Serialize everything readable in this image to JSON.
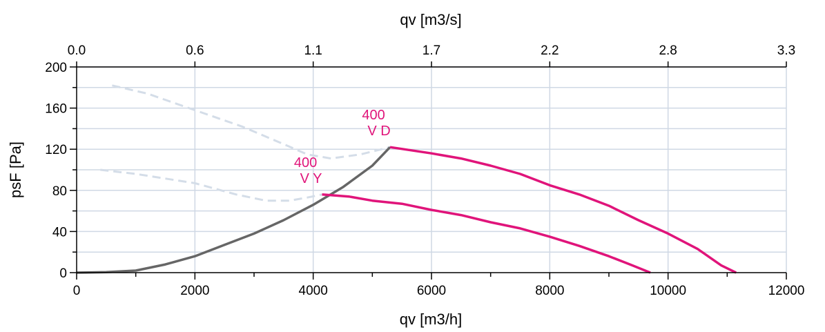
{
  "chart_data": {
    "type": "line",
    "xlabel": "qv [m3/h]",
    "x2label": "qv [m3/s]",
    "ylabel": "psF [Pa]",
    "xlim": [
      0,
      12000
    ],
    "ylim": [
      0,
      200
    ],
    "x_ticks": [
      0,
      2000,
      4000,
      6000,
      8000,
      10000,
      12000
    ],
    "x2_tick_labels": [
      "0.0",
      "0.6",
      "1.1",
      "1.7",
      "2.2",
      "2.8",
      "3.3"
    ],
    "y_ticks": [
      0,
      40,
      80,
      120,
      160,
      200
    ],
    "grid": true,
    "colors": {
      "curve": "#e0147a",
      "system": "#666666",
      "extension": "#d4dde8",
      "grid": "#cfd8e4"
    },
    "series": [
      {
        "id": "vd",
        "style": "curve",
        "points": [
          [
            5300,
            122
          ],
          [
            6000,
            116
          ],
          [
            6500,
            111
          ],
          [
            7000,
            104
          ],
          [
            7500,
            96
          ],
          [
            8000,
            85
          ],
          [
            8500,
            76
          ],
          [
            9000,
            65
          ],
          [
            9500,
            51
          ],
          [
            10000,
            38
          ],
          [
            10500,
            23
          ],
          [
            10900,
            7
          ],
          [
            11150,
            0
          ]
        ]
      },
      {
        "id": "vy",
        "style": "curve",
        "points": [
          [
            4150,
            76
          ],
          [
            4600,
            74
          ],
          [
            5000,
            70
          ],
          [
            5500,
            67
          ],
          [
            6000,
            61
          ],
          [
            6500,
            56
          ],
          [
            7000,
            49
          ],
          [
            7500,
            43
          ],
          [
            8000,
            35
          ],
          [
            8500,
            26
          ],
          [
            9000,
            16
          ],
          [
            9400,
            7
          ],
          [
            9700,
            0
          ]
        ]
      },
      {
        "id": "system",
        "style": "system",
        "points": [
          [
            0,
            0
          ],
          [
            500,
            0.5
          ],
          [
            1000,
            2
          ],
          [
            1500,
            8
          ],
          [
            2000,
            16
          ],
          [
            2500,
            27
          ],
          [
            3000,
            38
          ],
          [
            3500,
            51
          ],
          [
            4000,
            66
          ],
          [
            4500,
            83
          ],
          [
            5000,
            104
          ],
          [
            5300,
            122
          ]
        ]
      },
      {
        "id": "vd-extension",
        "style": "extension",
        "points": [
          [
            600,
            182
          ],
          [
            1200,
            174
          ],
          [
            2000,
            158
          ],
          [
            2800,
            142
          ],
          [
            3500,
            125
          ],
          [
            3900,
            115
          ],
          [
            4300,
            111
          ],
          [
            4800,
            115
          ],
          [
            5300,
            122
          ]
        ]
      },
      {
        "id": "vy-extension",
        "style": "extension",
        "points": [
          [
            400,
            100
          ],
          [
            1000,
            96
          ],
          [
            2000,
            87
          ],
          [
            2700,
            76
          ],
          [
            3200,
            70
          ],
          [
            3600,
            70
          ],
          [
            3900,
            73
          ],
          [
            4150,
            76
          ]
        ]
      }
    ],
    "annotations": [
      {
        "line1": "400",
        "line2": "V D",
        "x": 5300,
        "y": 122
      },
      {
        "line1": "400",
        "line2": "V Y",
        "x": 4150,
        "y": 76
      }
    ]
  }
}
